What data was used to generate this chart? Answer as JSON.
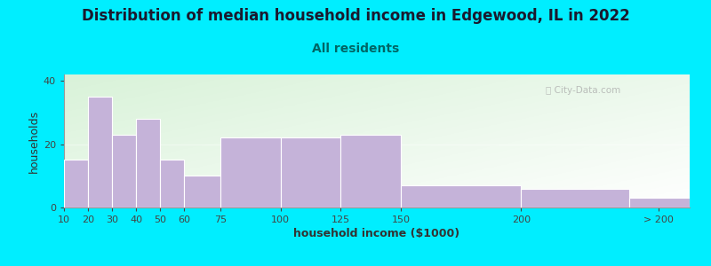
{
  "title": "Distribution of median household income in Edgewood, IL in 2022",
  "subtitle": "All residents",
  "xlabel": "household income ($1000)",
  "ylabel": "households",
  "bar_labels": [
    "10",
    "20",
    "30",
    "40",
    "50",
    "60",
    "75",
    "100",
    "125",
    "150",
    "200",
    "> 200"
  ],
  "bar_values": [
    15,
    35,
    23,
    28,
    15,
    10,
    22,
    22,
    23,
    7,
    6,
    3
  ],
  "bar_color": "#c5b3d9",
  "ylim": [
    0,
    42
  ],
  "yticks": [
    0,
    20,
    40
  ],
  "background_color_outer": "#00eeff",
  "title_color": "#1a1a2e",
  "subtitle_color": "#006666",
  "title_fontsize": 12,
  "subtitle_fontsize": 10,
  "axis_label_fontsize": 9,
  "tick_fontsize": 8,
  "watermark_text": "ⓘ City-Data.com",
  "fig_width": 8.0,
  "fig_height": 3.0
}
